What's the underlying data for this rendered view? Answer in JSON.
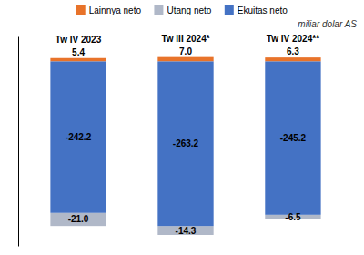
{
  "chart_data": {
    "type": "bar",
    "stacked": true,
    "categories": [
      "Tw IV 2023",
      "Tw III 2024*",
      "Tw IV 2024**"
    ],
    "series": [
      {
        "name": "Lainnya neto",
        "color": "#E8732A",
        "values": [
          5.4,
          7.0,
          6.3
        ],
        "value_labels": [
          "5.4",
          "7.0",
          "6.3"
        ]
      },
      {
        "name": "Utang neto",
        "color": "#B0B8C8",
        "values": [
          -21.0,
          -14.3,
          -6.5
        ],
        "value_labels": [
          "-21.0",
          "-14.3",
          "-6.5"
        ]
      },
      {
        "name": "Ekuitas neto",
        "color": "#4472C4",
        "values": [
          -242.2,
          -263.2,
          -245.2
        ]
      }
    ],
    "annotations": [
      "miliar dolar AS"
    ],
    "ylim": [
      -295,
      40
    ],
    "tick_labels": false,
    "data_labels": true,
    "grid": false,
    "legend": "top"
  }
}
